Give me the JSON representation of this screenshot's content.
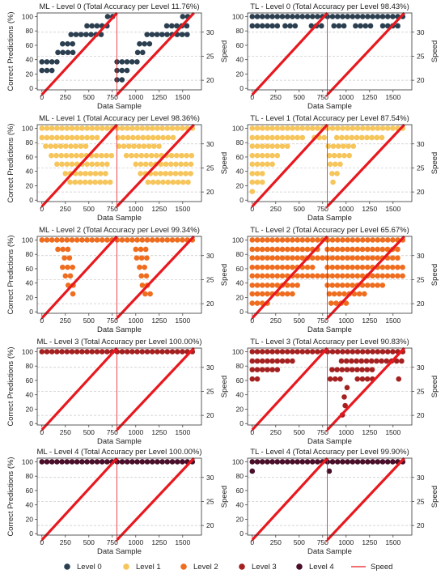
{
  "chart_data": {
    "type": "scatter",
    "x_label": "Data Sample",
    "y_label_left": "Correct Predictions (%)",
    "y_label_right": "Speed",
    "x_ticks": [
      0,
      250,
      500,
      750,
      1000,
      1250,
      1500
    ],
    "y_ticks_left": [
      0,
      20,
      40,
      60,
      80,
      100
    ],
    "y_ticks_right": [
      20,
      25,
      30
    ],
    "x_range": [
      -50,
      1700
    ],
    "y_range_left": [
      -2,
      105
    ],
    "y_range_right": [
      18,
      34
    ],
    "grid": "dashed horizontal at right-axis ticks",
    "speed_series": {
      "segments": [
        {
          "x": [
            0,
            800
          ],
          "y": [
            17,
            34
          ]
        },
        {
          "x": [
            800,
            1620
          ],
          "y": [
            17,
            34
          ]
        }
      ]
    },
    "panels": [
      {
        "title": "ML - Level 0 (Total Accuracy per Level 11.76%)",
        "level": 0,
        "color": "#2b3f50",
        "dots": [
          [
            0,
            25
          ],
          [
            110,
            25
          ],
          [
            0,
            37
          ],
          [
            190,
            37
          ],
          [
            170,
            50
          ],
          [
            340,
            50
          ],
          [
            220,
            62
          ],
          [
            340,
            62
          ],
          [
            310,
            75
          ],
          [
            650,
            75
          ],
          [
            480,
            87
          ],
          [
            700,
            87
          ],
          [
            700,
            100
          ],
          [
            760,
            100
          ],
          [
            800,
            12
          ],
          [
            860,
            12
          ],
          [
            800,
            25
          ],
          [
            940,
            25
          ],
          [
            800,
            37
          ],
          [
            1020,
            37
          ],
          [
            1020,
            50
          ],
          [
            1080,
            50
          ],
          [
            1040,
            62
          ],
          [
            1150,
            62
          ],
          [
            1120,
            75
          ],
          [
            1560,
            75
          ],
          [
            1330,
            87
          ],
          [
            1560,
            87
          ],
          [
            1500,
            100
          ],
          [
            1560,
            100
          ]
        ]
      },
      {
        "title": "TL - Level 0 (Total Accuracy per Level 98.43%)",
        "level": 0,
        "color": "#2b3f50",
        "dots": [
          [
            0,
            100
          ],
          [
            1620,
            100
          ],
          [
            0,
            87
          ],
          [
            280,
            87
          ],
          [
            350,
            87
          ],
          [
            500,
            87
          ],
          [
            630,
            87
          ],
          [
            780,
            87
          ],
          [
            870,
            87
          ],
          [
            980,
            87
          ],
          [
            1100,
            87
          ],
          [
            1300,
            87
          ],
          [
            1390,
            87
          ],
          [
            1580,
            87
          ],
          [
            1040,
            62
          ]
        ]
      },
      {
        "title": "ML - Level 1 (Total Accuracy per Level 98.36%)",
        "level": 1,
        "color": "#f6c55b",
        "dots": [
          [
            0,
            100
          ],
          [
            1620,
            100
          ],
          [
            0,
            87
          ],
          [
            600,
            87
          ],
          [
            810,
            87
          ],
          [
            1400,
            87
          ],
          [
            40,
            75
          ],
          [
            500,
            75
          ],
          [
            820,
            75
          ],
          [
            1300,
            75
          ],
          [
            100,
            62
          ],
          [
            750,
            62
          ],
          [
            900,
            62
          ],
          [
            1600,
            62
          ],
          [
            160,
            50
          ],
          [
            700,
            50
          ],
          [
            1000,
            50
          ],
          [
            1600,
            50
          ],
          [
            250,
            37
          ],
          [
            700,
            37
          ],
          [
            1050,
            37
          ],
          [
            1600,
            37
          ],
          [
            300,
            25
          ],
          [
            740,
            25
          ],
          [
            1130,
            25
          ],
          [
            1600,
            25
          ]
        ]
      },
      {
        "title": "TL - Level 1 (Total Accuracy per Level 87.54%)",
        "level": 1,
        "color": "#f6c55b",
        "dots": [
          [
            0,
            100
          ],
          [
            1620,
            100
          ],
          [
            0,
            87
          ],
          [
            570,
            87
          ],
          [
            660,
            87
          ],
          [
            800,
            87
          ],
          [
            900,
            87
          ],
          [
            1400,
            87
          ],
          [
            0,
            75
          ],
          [
            410,
            75
          ],
          [
            810,
            75
          ],
          [
            1130,
            75
          ],
          [
            0,
            62
          ],
          [
            310,
            62
          ],
          [
            820,
            62
          ],
          [
            1060,
            62
          ],
          [
            0,
            50
          ],
          [
            240,
            50
          ],
          [
            830,
            50
          ],
          [
            980,
            50
          ],
          [
            0,
            37
          ],
          [
            160,
            37
          ],
          [
            850,
            37
          ],
          [
            920,
            37
          ],
          [
            0,
            25
          ],
          [
            110,
            25
          ],
          [
            860,
            25
          ],
          [
            880,
            25
          ],
          [
            0,
            12
          ],
          [
            30,
            12
          ],
          [
            550,
            25
          ],
          [
            560,
            12
          ],
          [
            420,
            37
          ],
          [
            1000,
            25
          ],
          [
            1080,
            37
          ],
          [
            1380,
            25
          ],
          [
            600,
            62
          ]
        ]
      },
      {
        "title": "ML - Level 2 (Total Accuracy per Level 99.34%)",
        "level": 2,
        "color": "#ef6d1f",
        "dots": [
          [
            0,
            100
          ],
          [
            1620,
            100
          ],
          [
            170,
            87
          ],
          [
            300,
            87
          ],
          [
            240,
            75
          ],
          [
            320,
            75
          ],
          [
            220,
            62
          ],
          [
            340,
            62
          ],
          [
            250,
            50
          ],
          [
            350,
            50
          ],
          [
            280,
            37
          ],
          [
            370,
            37
          ],
          [
            330,
            25
          ],
          [
            380,
            25
          ],
          [
            1000,
            87
          ],
          [
            1160,
            87
          ],
          [
            1010,
            75
          ],
          [
            1150,
            75
          ],
          [
            1040,
            62
          ],
          [
            1140,
            62
          ],
          [
            1060,
            50
          ],
          [
            1160,
            50
          ],
          [
            1070,
            37
          ],
          [
            1170,
            37
          ],
          [
            1100,
            25
          ],
          [
            1170,
            25
          ]
        ]
      },
      {
        "title": "TL - Level 2 (Total Accuracy per Level 65.67%)",
        "level": 2,
        "color": "#ef6d1f",
        "dots": [
          [
            0,
            100
          ],
          [
            1620,
            100
          ],
          [
            0,
            87
          ],
          [
            700,
            87
          ],
          [
            0,
            75
          ],
          [
            800,
            75
          ],
          [
            0,
            62
          ],
          [
            680,
            62
          ],
          [
            0,
            50
          ],
          [
            780,
            50
          ],
          [
            0,
            37
          ],
          [
            520,
            37
          ],
          [
            0,
            25
          ],
          [
            480,
            25
          ],
          [
            0,
            12
          ],
          [
            200,
            12
          ],
          [
            620,
            25
          ],
          [
            720,
            12
          ],
          [
            800,
            87
          ],
          [
            1600,
            87
          ],
          [
            800,
            75
          ],
          [
            1600,
            75
          ],
          [
            800,
            62
          ],
          [
            1620,
            62
          ],
          [
            800,
            50
          ],
          [
            1620,
            50
          ],
          [
            800,
            37
          ],
          [
            1400,
            37
          ],
          [
            820,
            25
          ],
          [
            1200,
            25
          ],
          [
            840,
            12
          ],
          [
            1050,
            12
          ],
          [
            1040,
            0
          ]
        ]
      },
      {
        "title": "ML - Level 3 (Total Accuracy per Level 100.00%)",
        "level": 3,
        "color": "#a52121",
        "dots": [
          [
            0,
            100
          ],
          [
            1620,
            100
          ],
          [
            1040,
            87
          ]
        ]
      },
      {
        "title": "TL - Level 3 (Total Accuracy per Level 90.83%)",
        "level": 3,
        "color": "#a52121",
        "dots": [
          [
            0,
            100
          ],
          [
            1620,
            100
          ],
          [
            0,
            87
          ],
          [
            460,
            87
          ],
          [
            950,
            87
          ],
          [
            1620,
            87
          ],
          [
            0,
            75
          ],
          [
            280,
            75
          ],
          [
            850,
            75
          ],
          [
            1300,
            75
          ],
          [
            0,
            62
          ],
          [
            70,
            62
          ],
          [
            830,
            62
          ],
          [
            960,
            62
          ],
          [
            1010,
            50
          ],
          [
            1020,
            50
          ],
          [
            980,
            37
          ],
          [
            1010,
            37
          ],
          [
            990,
            25
          ],
          [
            1000,
            25
          ],
          [
            960,
            12
          ],
          [
            970,
            12
          ],
          [
            1120,
            62
          ],
          [
            1300,
            62
          ],
          [
            1560,
            62
          ],
          [
            1560,
            62
          ]
        ]
      },
      {
        "title": "ML - Level 4 (Total Accuracy per Level 100.00%)",
        "level": 4,
        "color": "#4a0f2a",
        "dots": [
          [
            0,
            100
          ],
          [
            1620,
            100
          ]
        ]
      },
      {
        "title": "TL - Level 4 (Total Accuracy per Level 99.90%)",
        "level": 4,
        "color": "#4a0f2a",
        "dots": [
          [
            0,
            100
          ],
          [
            1620,
            100
          ],
          [
            0,
            87
          ],
          [
            50,
            87
          ],
          [
            820,
            87
          ],
          [
            870,
            87
          ]
        ]
      }
    ],
    "legend": {
      "placement": "bottom",
      "items": [
        {
          "label": "Level 0",
          "color": "#2b3f50",
          "kind": "dot"
        },
        {
          "label": "Level 1",
          "color": "#f6c55b",
          "kind": "dot"
        },
        {
          "label": "Level 2",
          "color": "#ef6d1f",
          "kind": "dot"
        },
        {
          "label": "Level 3",
          "color": "#a52121",
          "kind": "dot"
        },
        {
          "label": "Level 4",
          "color": "#4a0f2a",
          "kind": "dot"
        },
        {
          "label": "Speed",
          "color": "#e8191f",
          "kind": "line"
        }
      ]
    }
  }
}
